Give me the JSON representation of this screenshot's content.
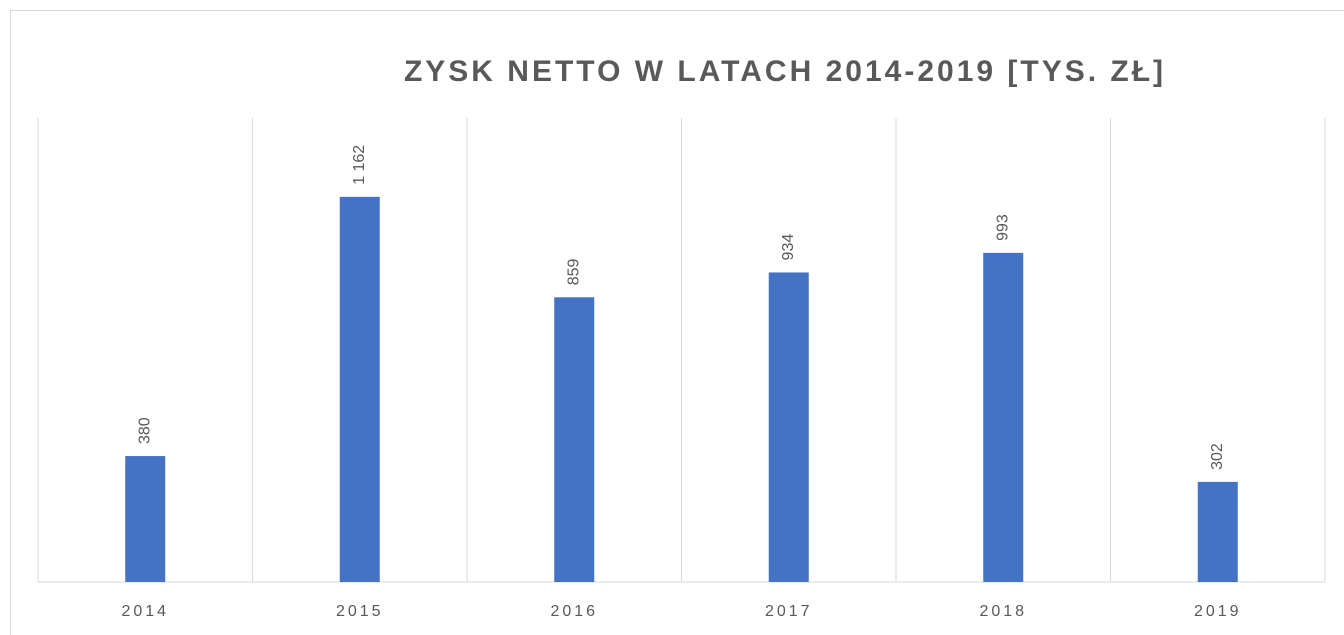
{
  "chart_data": {
    "type": "bar",
    "title": "ZYSK NETTO W LATACH 2014-2019 [TYS. ZŁ]",
    "categories": [
      "2014",
      "2015",
      "2016",
      "2017",
      "2018",
      "2019"
    ],
    "values": [
      380,
      1162,
      859,
      934,
      993,
      302
    ],
    "value_labels": [
      "380",
      "1 162",
      "859",
      "934",
      "993",
      "302"
    ],
    "color": "#4472c4",
    "ylim": [
      0,
      1400
    ]
  }
}
